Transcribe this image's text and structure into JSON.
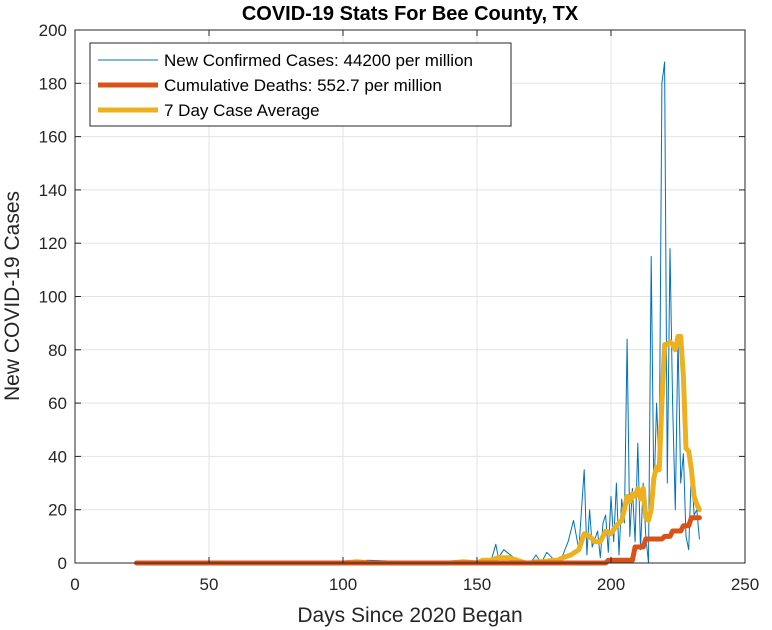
{
  "chart_data": {
    "type": "line",
    "title": "COVID-19 Stats For Bee County, TX",
    "xlabel": "Days Since 2020 Began",
    "ylabel": "New COVID-19 Cases",
    "xlim": [
      0,
      250
    ],
    "ylim": [
      0,
      200
    ],
    "xticks": [
      "0",
      "50",
      "100",
      "150",
      "200",
      "250"
    ],
    "yticks": [
      "0",
      "20",
      "40",
      "60",
      "80",
      "100",
      "120",
      "140",
      "160",
      "180",
      "200"
    ],
    "grid": true,
    "legend_position": "top-left",
    "series": [
      {
        "name": "New Confirmed Cases: 44200 per million",
        "color": "#0072BD",
        "linewidth": 1,
        "x": [
          23,
          100,
          105,
          107,
          109,
          140,
          150,
          155,
          157,
          158,
          160,
          165,
          170,
          172,
          174,
          176,
          178,
          180,
          182,
          184,
          186,
          188,
          190,
          191,
          192,
          193,
          195,
          196,
          197,
          198,
          199,
          200,
          201,
          202,
          203,
          204,
          205,
          206,
          207,
          208,
          209,
          210,
          211,
          212,
          213,
          214,
          215,
          216,
          217,
          218,
          219,
          220,
          221,
          222,
          223,
          224,
          225,
          226,
          227,
          228,
          229,
          230,
          231,
          232,
          233
        ],
        "y": [
          0,
          0,
          1,
          0,
          1,
          0,
          0,
          0,
          7,
          2,
          5,
          1,
          0,
          3,
          0,
          4,
          2,
          0,
          3,
          8,
          16,
          5,
          35,
          3,
          20,
          6,
          12,
          2,
          15,
          18,
          4,
          25,
          8,
          30,
          3,
          24,
          15,
          84,
          10,
          28,
          8,
          45,
          5,
          30,
          10,
          0,
          115,
          25,
          60,
          35,
          180,
          188,
          30,
          118,
          60,
          20,
          85,
          30,
          41,
          10,
          5,
          35,
          18,
          20,
          9
        ]
      },
      {
        "name": "Cumulative Deaths: 552.7 per million",
        "color": "#D95319",
        "linewidth": 5,
        "x": [
          23,
          198,
          199,
          208,
          209,
          212,
          213,
          219,
          220,
          222,
          223,
          226,
          227,
          229,
          230,
          233
        ],
        "y": [
          0,
          0,
          1,
          1,
          6,
          6,
          9,
          9,
          10,
          10,
          12,
          12,
          14,
          14,
          17,
          17
        ]
      },
      {
        "name": "7 Day Case Average",
        "color": "#EDB120",
        "linewidth": 5,
        "x": [
          23,
          100,
          105,
          110,
          115,
          140,
          145,
          150,
          152,
          155,
          158,
          160,
          162,
          165,
          168,
          170,
          172,
          175,
          178,
          180,
          182,
          185,
          188,
          190,
          192,
          194,
          196,
          198,
          200,
          202,
          204,
          205,
          206,
          207,
          208,
          209,
          210,
          211,
          212,
          213,
          214,
          215,
          216,
          217,
          218,
          219,
          220,
          221,
          222,
          223,
          224,
          225,
          226,
          227,
          228,
          229,
          230,
          231,
          232,
          233
        ],
        "y": [
          0,
          0,
          0.5,
          0,
          0,
          0,
          0.5,
          0,
          1,
          1,
          2,
          2,
          2,
          1,
          0,
          0,
          0.5,
          0.5,
          1,
          1,
          2,
          3,
          5,
          11,
          10,
          8,
          8,
          12,
          11,
          14,
          16,
          20,
          25,
          23,
          26,
          25,
          28,
          24,
          28,
          17,
          16,
          20,
          32,
          36,
          35,
          60,
          82,
          82,
          83,
          82,
          80,
          85,
          85,
          70,
          43,
          42,
          35,
          25,
          22,
          20
        ]
      }
    ]
  }
}
